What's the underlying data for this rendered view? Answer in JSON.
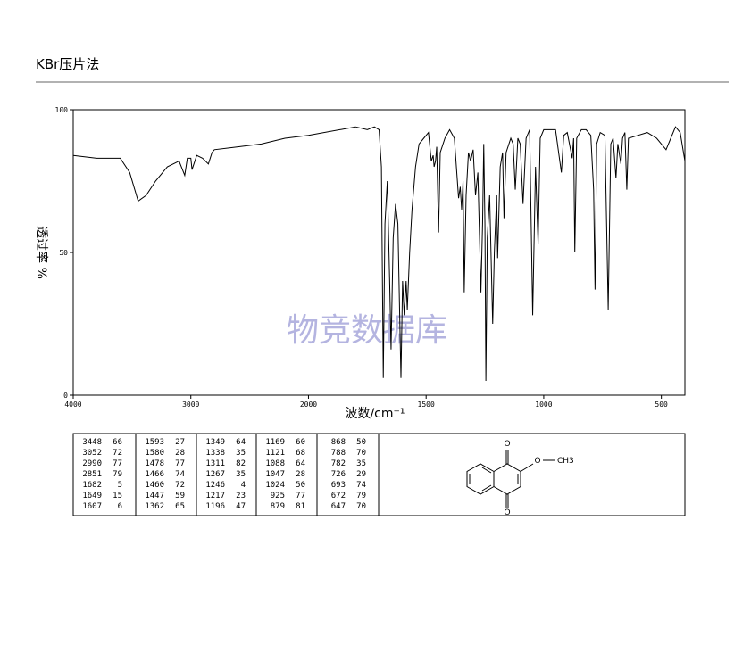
{
  "chart_data": {
    "type": "line",
    "title": "KBr压片法",
    "xlabel": "波数/cm⁻¹",
    "ylabel": "透过率 %",
    "watermark": "物竞数据库",
    "xlim": [
      4000,
      400
    ],
    "x_scale_break": 2000,
    "xticks": [
      4000,
      3000,
      2000,
      1500,
      1000,
      500
    ],
    "ylim": [
      0,
      100
    ],
    "yticks": [
      0,
      50,
      100
    ],
    "color": "#000000",
    "x": [
      4000,
      3800,
      3600,
      3520,
      3448,
      3380,
      3300,
      3200,
      3100,
      3052,
      3030,
      3000,
      2990,
      2950,
      2900,
      2851,
      2820,
      2800,
      2600,
      2400,
      2200,
      2000,
      1800,
      1750,
      1720,
      1700,
      1690,
      1682,
      1675,
      1665,
      1655,
      1649,
      1640,
      1630,
      1620,
      1607,
      1600,
      1593,
      1585,
      1580,
      1570,
      1560,
      1545,
      1530,
      1510,
      1490,
      1478,
      1470,
      1466,
      1460,
      1455,
      1447,
      1440,
      1420,
      1400,
      1380,
      1362,
      1355,
      1349,
      1343,
      1338,
      1330,
      1320,
      1311,
      1300,
      1290,
      1280,
      1267,
      1260,
      1255,
      1250,
      1246,
      1240,
      1230,
      1217,
      1210,
      1200,
      1196,
      1185,
      1175,
      1169,
      1160,
      1140,
      1130,
      1121,
      1110,
      1100,
      1088,
      1075,
      1060,
      1047,
      1035,
      1024,
      1015,
      1000,
      980,
      950,
      925,
      915,
      900,
      879,
      873,
      868,
      860,
      840,
      820,
      800,
      788,
      782,
      775,
      760,
      740,
      726,
      715,
      705,
      693,
      685,
      672,
      665,
      655,
      647,
      640,
      600,
      560,
      520,
      500,
      480,
      460,
      440,
      420,
      400
    ],
    "values": [
      84,
      83,
      83,
      78,
      68,
      70,
      75,
      80,
      82,
      77,
      83,
      83,
      79,
      84,
      83,
      81,
      85,
      86,
      87,
      88,
      90,
      91,
      94,
      93,
      94,
      93,
      80,
      6,
      60,
      75,
      40,
      16,
      55,
      67,
      60,
      6,
      40,
      28,
      40,
      30,
      50,
      65,
      80,
      88,
      90,
      92,
      82,
      84,
      80,
      82,
      87,
      57,
      85,
      90,
      93,
      90,
      69,
      73,
      65,
      75,
      36,
      70,
      85,
      82,
      86,
      70,
      78,
      36,
      60,
      88,
      60,
      5,
      55,
      70,
      25,
      50,
      70,
      48,
      80,
      85,
      62,
      85,
      90,
      88,
      72,
      90,
      88,
      67,
      90,
      93,
      28,
      80,
      53,
      90,
      93,
      93,
      93,
      78,
      91,
      92,
      83,
      90,
      50,
      90,
      93,
      93,
      91,
      72,
      37,
      88,
      92,
      91,
      30,
      88,
      90,
      76,
      88,
      81,
      90,
      92,
      72,
      90,
      91,
      92,
      90,
      88,
      86,
      90,
      94,
      92,
      82
    ]
  },
  "peak_table": {
    "columns": [
      [
        [
          3448,
          66
        ],
        [
          3052,
          72
        ],
        [
          2990,
          77
        ],
        [
          2851,
          79
        ],
        [
          1682,
          5
        ],
        [
          1649,
          15
        ],
        [
          1607,
          6
        ]
      ],
      [
        [
          1593,
          27
        ],
        [
          1580,
          28
        ],
        [
          1478,
          77
        ],
        [
          1466,
          74
        ],
        [
          1460,
          72
        ],
        [
          1447,
          59
        ],
        [
          1362,
          65
        ]
      ],
      [
        [
          1349,
          64
        ],
        [
          1338,
          35
        ],
        [
          1311,
          82
        ],
        [
          1267,
          35
        ],
        [
          1246,
          4
        ],
        [
          1217,
          23
        ],
        [
          1196,
          47
        ]
      ],
      [
        [
          1169,
          60
        ],
        [
          1121,
          68
        ],
        [
          1088,
          64
        ],
        [
          1047,
          28
        ],
        [
          1024,
          50
        ],
        [
          925,
          77
        ],
        [
          879,
          81
        ]
      ],
      [
        [
          868,
          50
        ],
        [
          788,
          70
        ],
        [
          782,
          35
        ],
        [
          726,
          29
        ],
        [
          693,
          74
        ],
        [
          672,
          79
        ],
        [
          647,
          70
        ]
      ]
    ]
  },
  "structure": {
    "atoms": [
      "O",
      "O",
      "O",
      "CH3"
    ]
  }
}
